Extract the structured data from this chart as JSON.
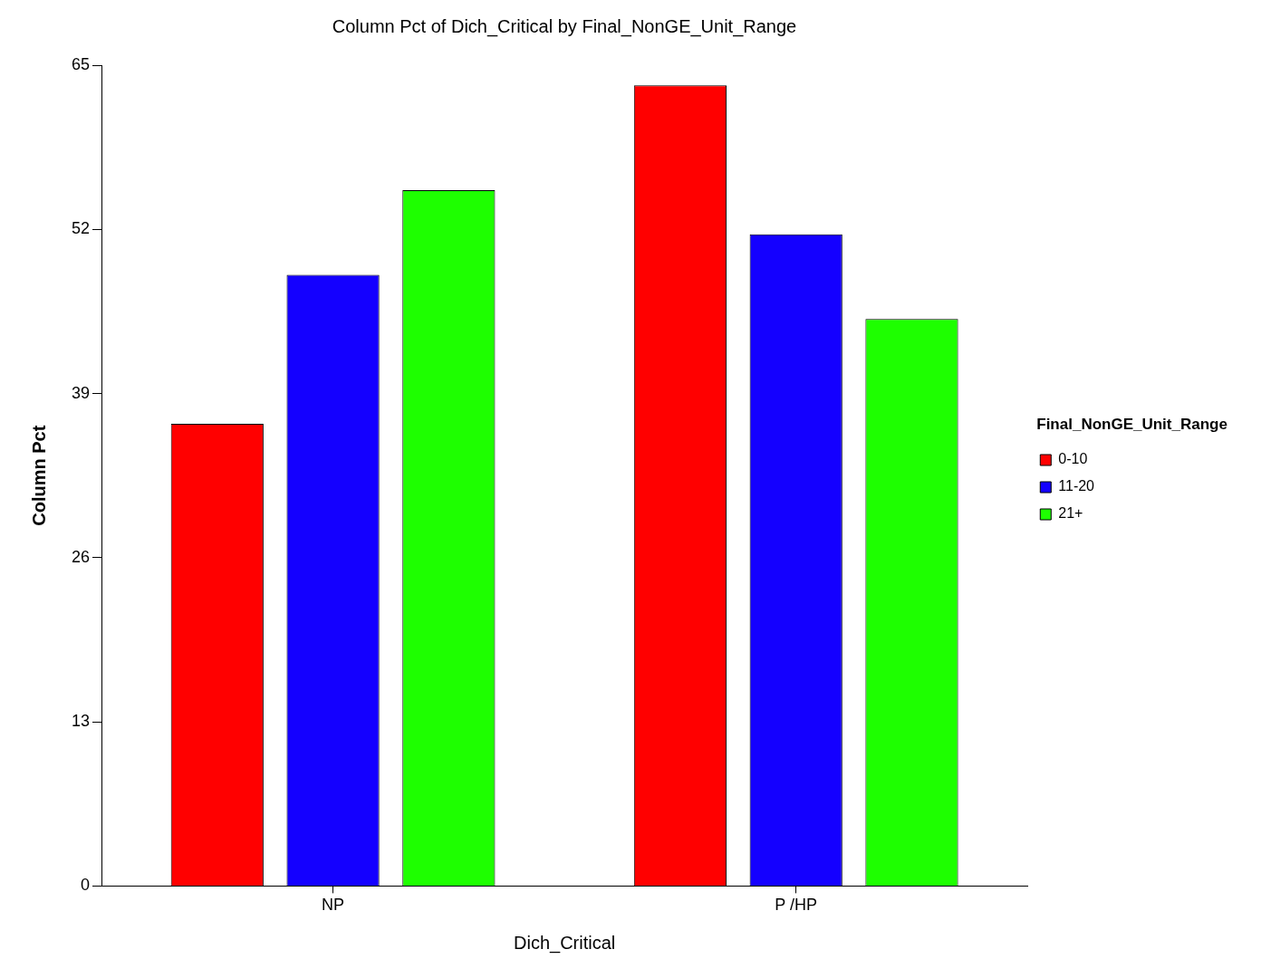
{
  "chart_data": {
    "type": "bar",
    "title": "Column Pct of Dich_Critical by Final_NonGE_Unit_Range",
    "xlabel": "Dich_Critical",
    "ylabel": "Column Pct",
    "legend_title": "Final_NonGE_Unit_Range",
    "categories": [
      "NP",
      "P /HP"
    ],
    "series": [
      {
        "name": "0-10",
        "color": "#ff0000",
        "values": [
          36.6,
          63.4
        ]
      },
      {
        "name": "11-20",
        "color": "#1400ff",
        "values": [
          48.4,
          51.6
        ]
      },
      {
        "name": "21+",
        "color": "#1eff00",
        "values": [
          55.1,
          44.9
        ]
      }
    ],
    "ylim": [
      0,
      65
    ],
    "yticks": [
      0,
      13,
      26,
      39,
      52,
      65
    ],
    "grid": false,
    "legend": "right"
  }
}
